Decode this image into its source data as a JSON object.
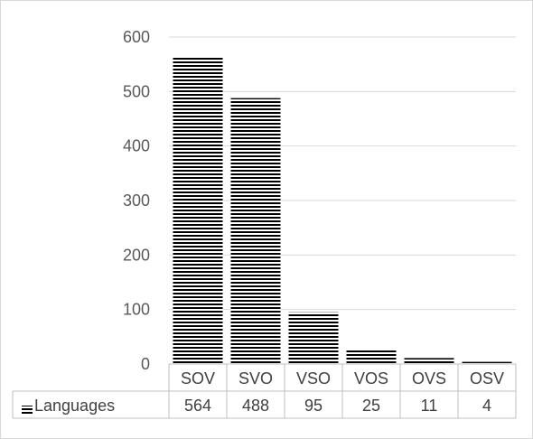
{
  "chart_data": {
    "type": "bar",
    "categories": [
      "SOV",
      "SVO",
      "VSO",
      "VOS",
      "OVS",
      "OSV"
    ],
    "series": [
      {
        "name": "Languages",
        "values": [
          564,
          488,
          95,
          25,
          11,
          4
        ]
      }
    ],
    "ylim": [
      0,
      600
    ],
    "yticks": [
      0,
      100,
      200,
      300,
      400,
      500,
      600
    ],
    "grid": true,
    "data_table": true,
    "bar_fill": "horizontal-stripes",
    "bar_color": "#000000",
    "grid_color": "#d9d9d9",
    "table_line_color": "#bfbfbf"
  }
}
